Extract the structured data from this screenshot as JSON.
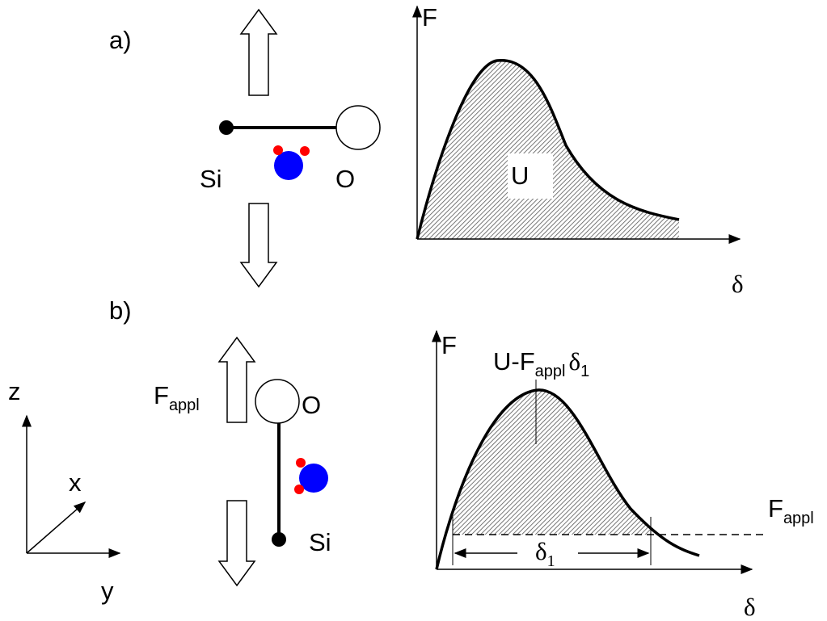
{
  "panel_a": {
    "label": "a)",
    "atom_left": "Si",
    "atom_right": "O",
    "plot": {
      "y_axis": "F",
      "x_axis": "δ",
      "area_label": "U"
    }
  },
  "panel_b": {
    "label": "b)",
    "force_label": {
      "main": "F",
      "sub": "appl"
    },
    "atom_top": "O",
    "atom_bottom": "Si",
    "plot": {
      "y_axis": "F",
      "x_axis": "δ",
      "area_label": {
        "main": "U-F",
        "sub": "appl",
        "symbol": "δ",
        "symbol_sub": "1"
      },
      "width_label": {
        "symbol": "δ",
        "sub": "1"
      },
      "force_line_label": {
        "main": "F",
        "sub": "appl"
      }
    }
  },
  "axes": {
    "z": "z",
    "x": "x",
    "y": "y"
  }
}
